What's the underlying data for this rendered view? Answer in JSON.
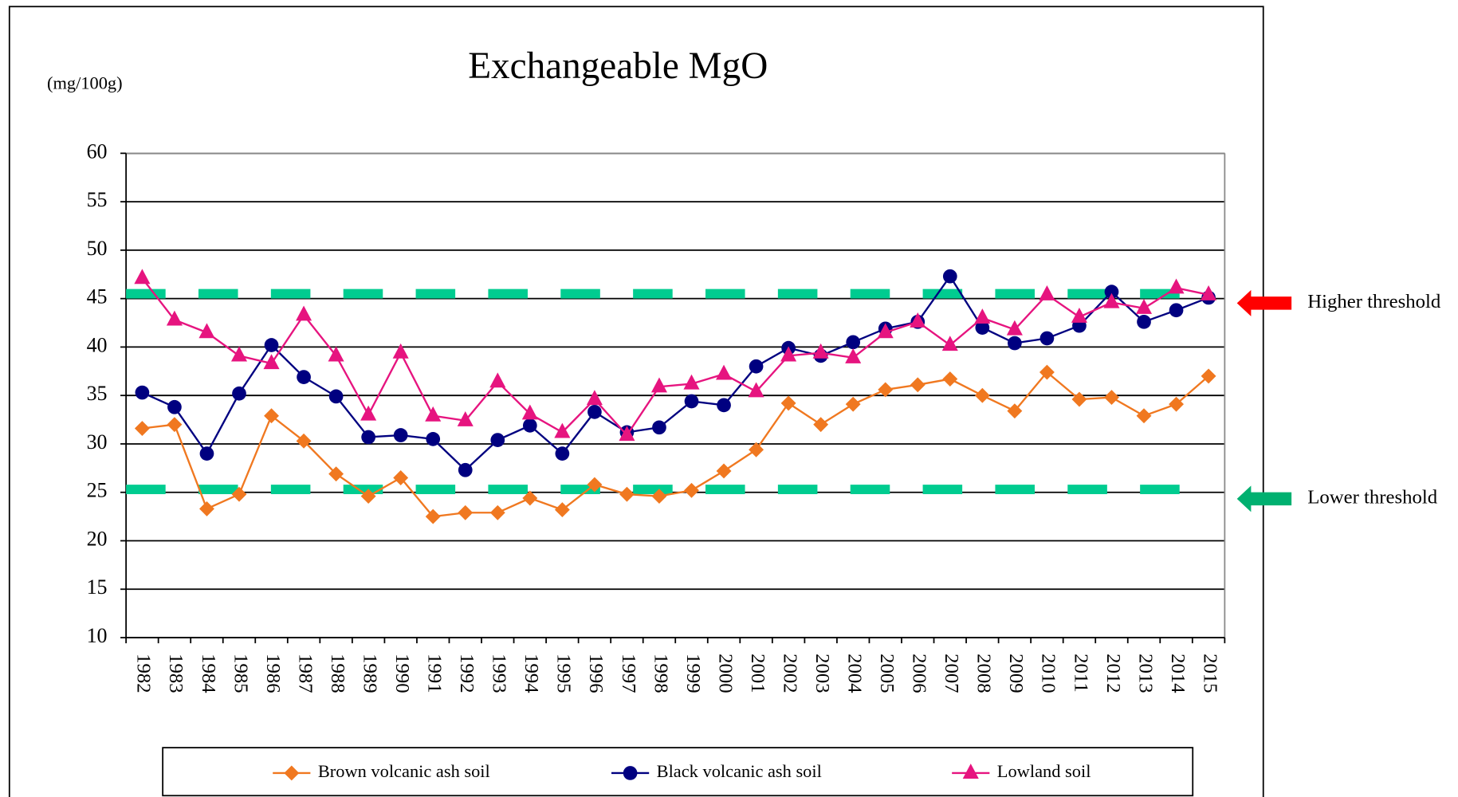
{
  "chart_data": {
    "type": "line",
    "title": "Exchangeable MgO",
    "y_label": "(mg/100g)",
    "categories": [
      "1982",
      "1983",
      "1984",
      "1985",
      "1986",
      "1987",
      "1988",
      "1989",
      "1990",
      "1991",
      "1992",
      "1993",
      "1994",
      "1995",
      "1996",
      "1997",
      "1998",
      "1999",
      "2000",
      "2001",
      "2002",
      "2003",
      "2004",
      "2005",
      "2006",
      "2007",
      "2008",
      "2009",
      "2010",
      "2011",
      "2012",
      "2013",
      "2014",
      "2015"
    ],
    "series": [
      {
        "name": "Brown volcanic ash soil",
        "color": "#f07820",
        "marker": "diamond",
        "values": [
          31.6,
          32.0,
          23.3,
          24.8,
          32.9,
          30.3,
          26.9,
          24.6,
          26.5,
          22.5,
          22.9,
          22.9,
          24.4,
          23.2,
          25.8,
          24.8,
          24.6,
          25.2,
          27.2,
          29.4,
          34.2,
          32.0,
          34.1,
          35.6,
          36.1,
          36.7,
          35.0,
          33.4,
          37.4,
          34.6,
          34.8,
          32.9,
          34.1,
          37.0
        ]
      },
      {
        "name": "Black volcanic ash soil",
        "color": "#000080",
        "marker": "circle",
        "values": [
          35.3,
          33.8,
          29.0,
          35.2,
          40.2,
          36.9,
          34.9,
          30.7,
          30.9,
          30.5,
          27.3,
          30.4,
          31.9,
          29.0,
          33.3,
          31.2,
          31.7,
          34.4,
          34.0,
          38.0,
          39.9,
          39.1,
          40.5,
          41.9,
          42.6,
          47.3,
          42.0,
          40.4,
          40.9,
          42.2,
          45.7,
          42.6,
          43.8,
          45.1
        ]
      },
      {
        "name": "Lowland soil",
        "color": "#e6147f",
        "marker": "triangle",
        "values": [
          47.1,
          42.8,
          41.5,
          39.1,
          38.3,
          43.3,
          39.1,
          33.0,
          39.4,
          32.9,
          32.4,
          36.4,
          33.1,
          31.2,
          34.6,
          30.9,
          35.9,
          36.2,
          37.2,
          35.4,
          39.1,
          39.4,
          38.9,
          41.5,
          42.6,
          40.2,
          43.0,
          41.8,
          45.4,
          43.1,
          44.6,
          44.0,
          46.1,
          45.4
        ]
      }
    ],
    "thresholds": [
      {
        "name": "Higher threshold",
        "value": 45.5,
        "color": "#00cc90",
        "label_color": "#ff0000",
        "arrow_color": "#ff0000"
      },
      {
        "name": "Lower threshold",
        "value": 25.3,
        "color": "#00cc90",
        "label_color": "#3333cc",
        "arrow_color": "#00b070"
      }
    ],
    "ylim": [
      10,
      60
    ],
    "yticks": [
      10,
      15,
      20,
      25,
      30,
      35,
      40,
      45,
      50,
      55,
      60
    ],
    "grid": true
  }
}
